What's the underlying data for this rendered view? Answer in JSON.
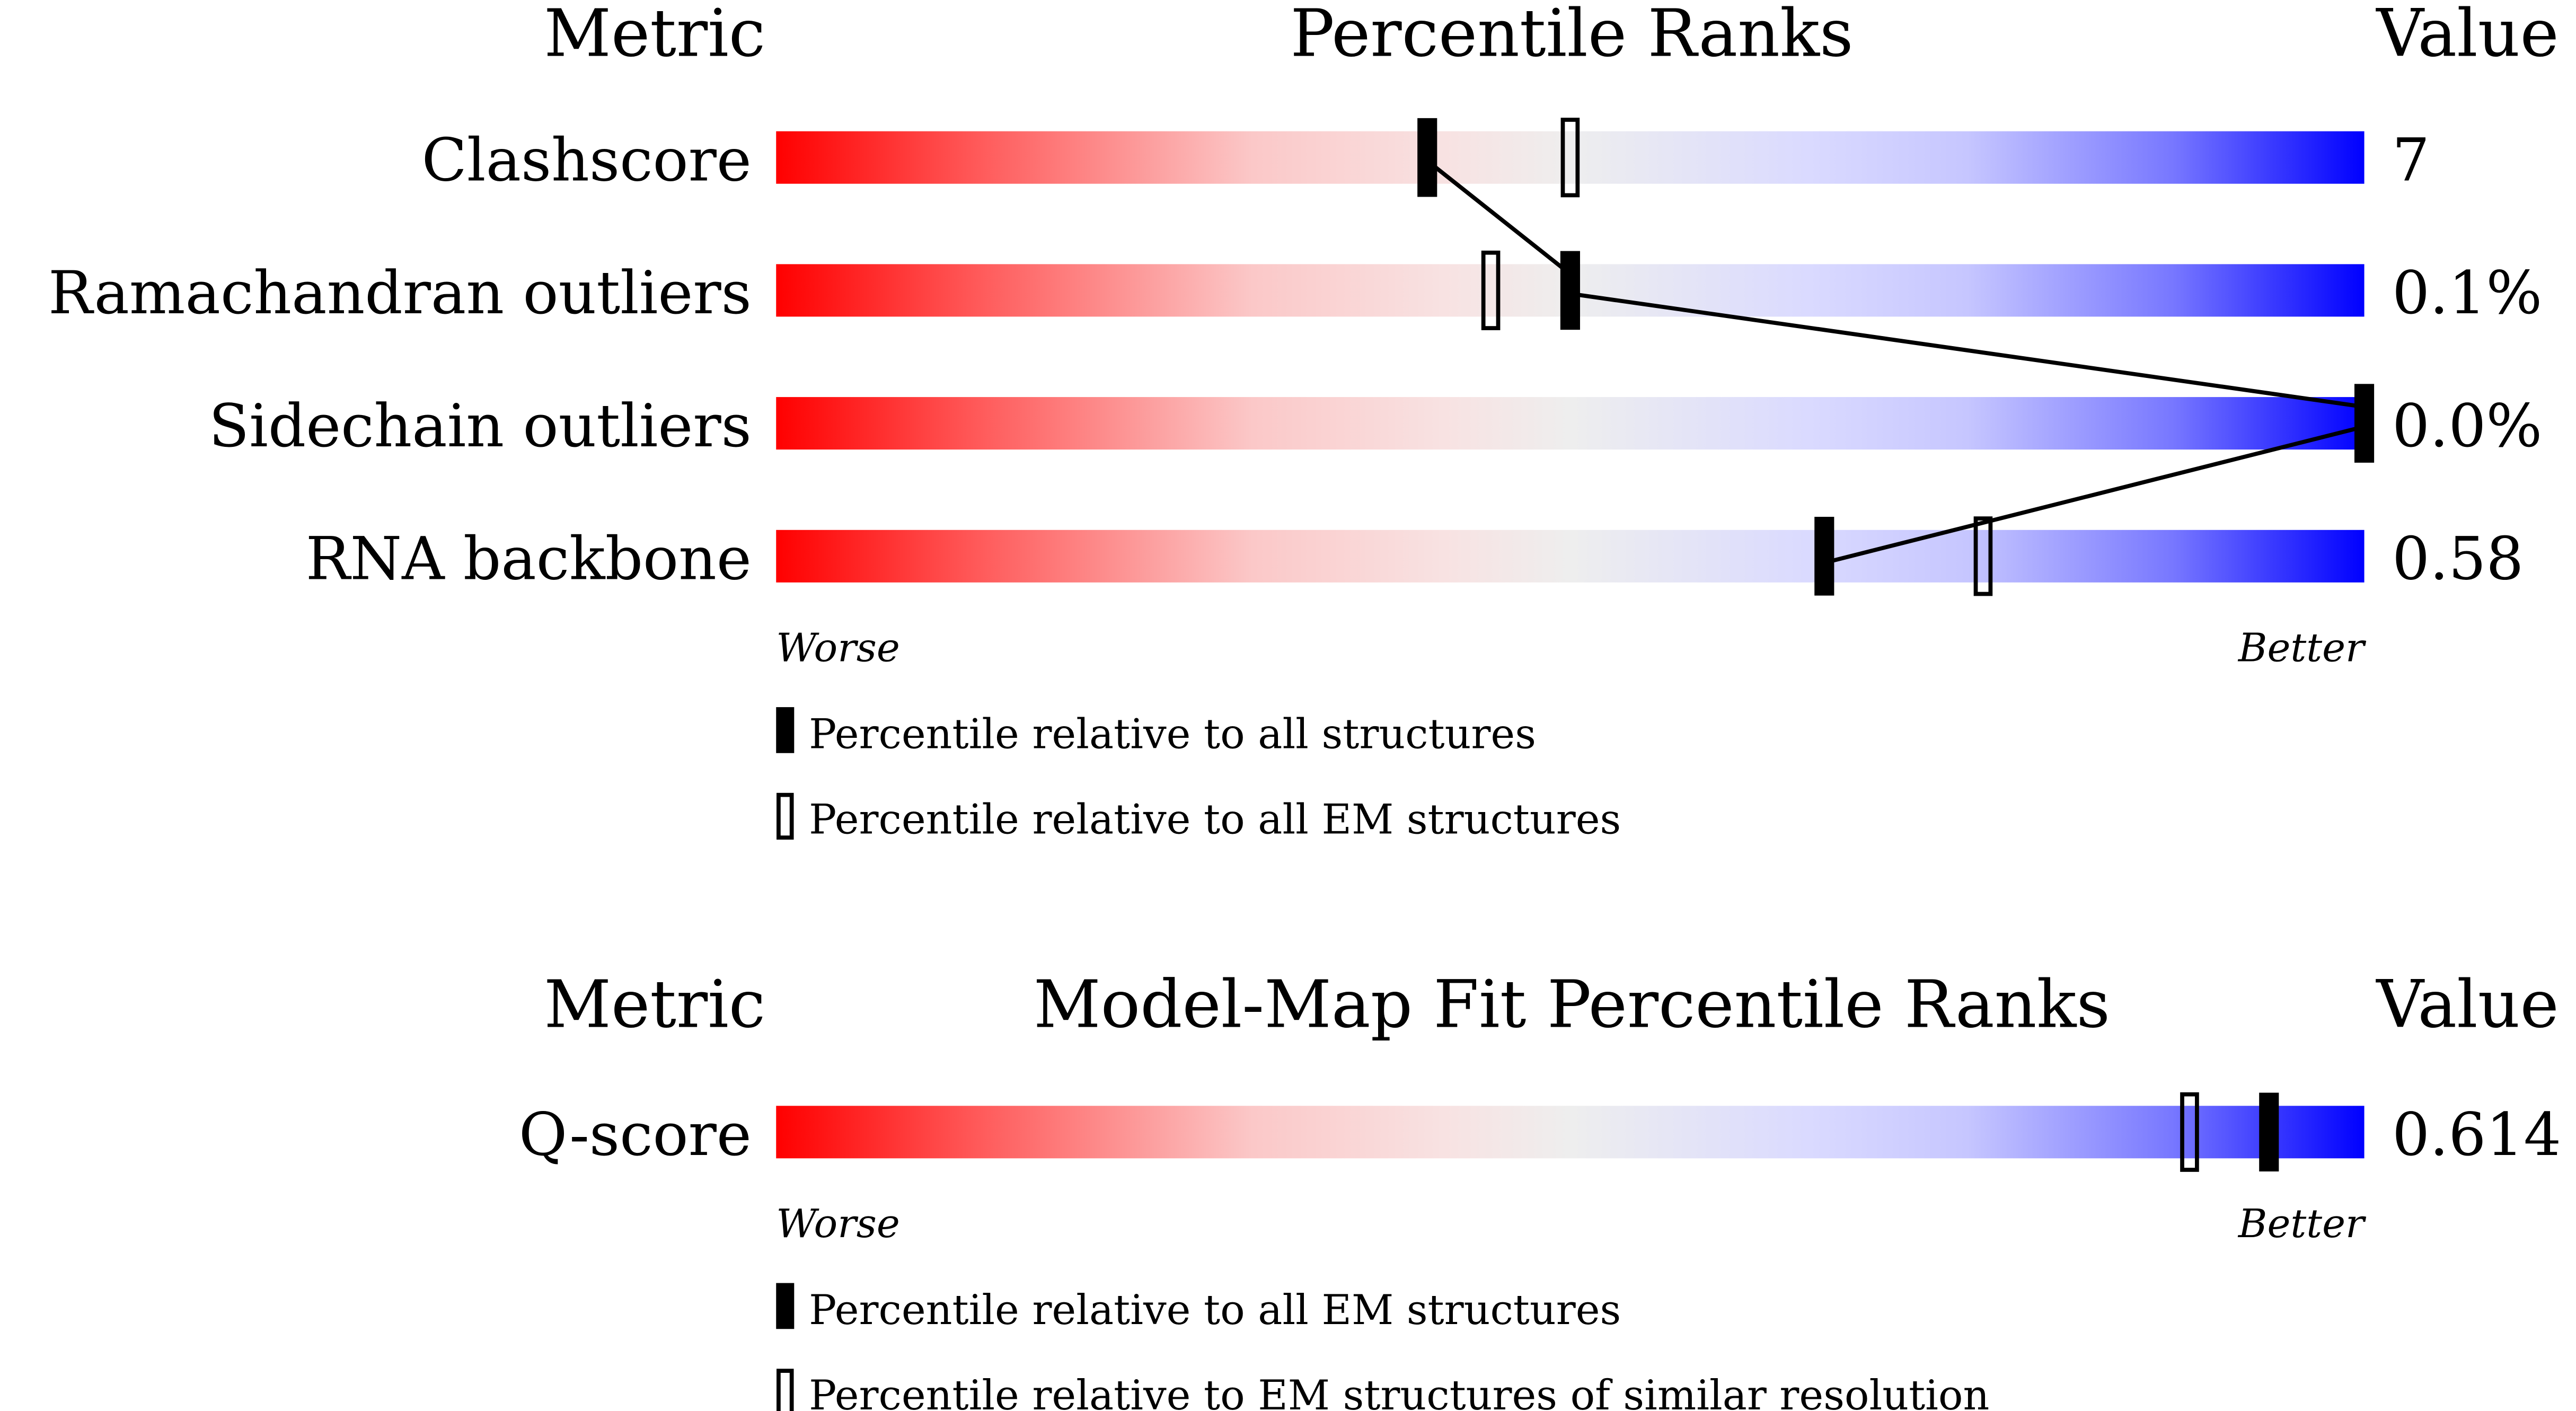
{
  "chart_data": [
    {
      "type": "percentile-bar",
      "title": "Percentile Ranks",
      "metric_header": "Metric",
      "value_header": "Value",
      "worse_label": "Worse",
      "better_label": "Better",
      "xlim": [
        0,
        100
      ],
      "rows": [
        {
          "metric": "Clashscore",
          "value": "7",
          "percentile_all": 41,
          "percentile_secondary": 50
        },
        {
          "metric": "Ramachandran outliers",
          "value": "0.1%",
          "percentile_all": 50,
          "percentile_secondary": 45
        },
        {
          "metric": "Sidechain outliers",
          "value": "0.0%",
          "percentile_all": 100,
          "percentile_secondary": null
        },
        {
          "metric": "RNA backbone",
          "value": "0.58",
          "percentile_all": 66,
          "percentile_secondary": 76
        }
      ],
      "legend": [
        {
          "marker": "filled",
          "label": "Percentile relative to all structures"
        },
        {
          "marker": "open",
          "label": "Percentile relative to all EM structures"
        }
      ],
      "connect_all_markers": true
    },
    {
      "type": "percentile-bar",
      "title": "Model-Map Fit Percentile Ranks",
      "metric_header": "Metric",
      "value_header": "Value",
      "worse_label": "Worse",
      "better_label": "Better",
      "xlim": [
        0,
        100
      ],
      "rows": [
        {
          "metric": "Q-score",
          "value": "0.614",
          "percentile_all": 94,
          "percentile_secondary": 89
        }
      ],
      "legend": [
        {
          "marker": "filled",
          "label": "Percentile relative to all EM structures"
        },
        {
          "marker": "open",
          "label": "Percentile relative to EM structures of similar resolution"
        }
      ],
      "connect_all_markers": false
    }
  ],
  "colors": {
    "worse": "#ff0000",
    "middle": "#eeeeee",
    "better": "#0000ff",
    "marker": "#000000"
  }
}
